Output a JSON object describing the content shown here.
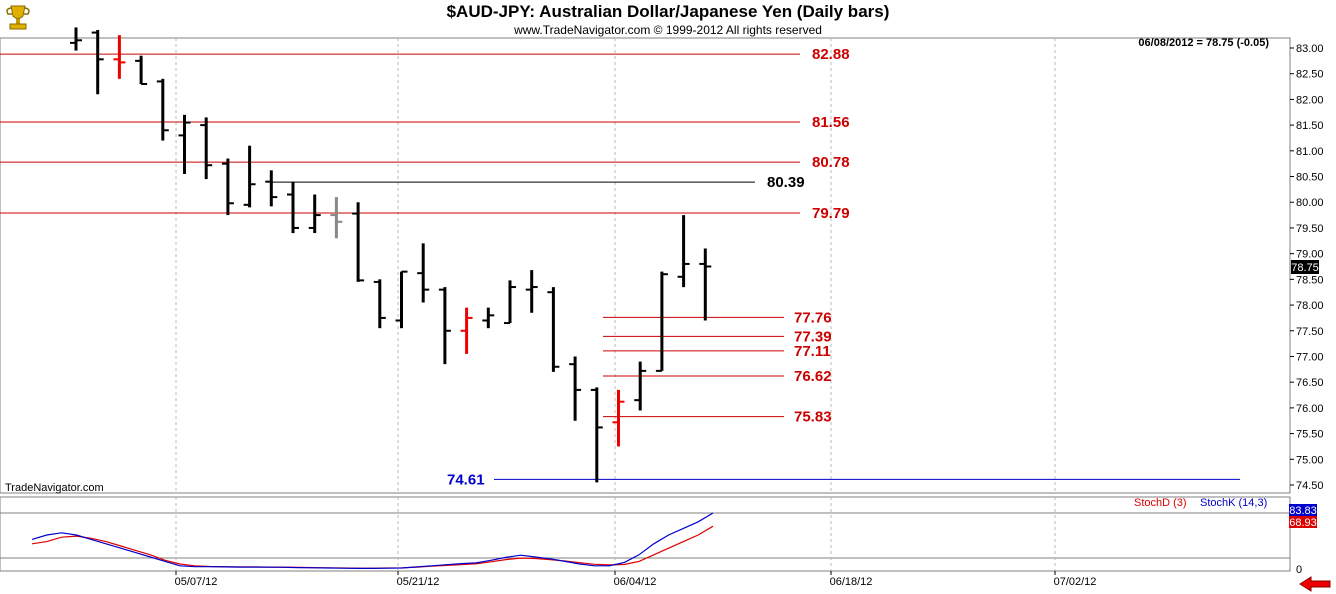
{
  "header": {
    "title": "$AUD-JPY:  Australian Dollar/Japanese Yen  (Daily bars)",
    "copyright": "www.TradeNavigator.com © 1999-2012 All rights reserved",
    "quote": "06/08/2012 = 78.75 (-0.05)",
    "watermark": "TradeNavigator.com"
  },
  "chart_data": {
    "type": "ohlc",
    "y_ticks": [
      "83.00",
      "82.50",
      "82.00",
      "81.50",
      "81.00",
      "80.50",
      "80.00",
      "79.50",
      "79.00",
      "78.50",
      "78.00",
      "77.50",
      "77.00",
      "76.50",
      "76.00",
      "75.50",
      "75.00",
      "74.50"
    ],
    "ylim": [
      74.5,
      83.0
    ],
    "x_labels": [
      "05/07/12",
      "05/21/12",
      "06/04/12",
      "06/18/12",
      "07/02/12"
    ],
    "last_price": "78.75",
    "bars": [
      {
        "o": 83.1,
        "h": 83.4,
        "l": 82.95,
        "c": 83.15,
        "color": "black"
      },
      {
        "o": 83.3,
        "h": 83.35,
        "l": 82.1,
        "c": 82.78,
        "color": "black"
      },
      {
        "o": 82.78,
        "h": 83.25,
        "l": 82.4,
        "c": 82.72,
        "color": "red"
      },
      {
        "o": 82.75,
        "h": 82.85,
        "l": 82.3,
        "c": 82.3,
        "color": "black"
      },
      {
        "o": 82.35,
        "h": 82.4,
        "l": 81.2,
        "c": 81.4,
        "color": "black"
      },
      {
        "o": 81.3,
        "h": 81.7,
        "l": 80.55,
        "c": 81.55,
        "color": "black"
      },
      {
        "o": 81.5,
        "h": 81.65,
        "l": 80.45,
        "c": 80.72,
        "color": "black"
      },
      {
        "o": 80.75,
        "h": 80.85,
        "l": 79.75,
        "c": 79.98,
        "color": "black"
      },
      {
        "o": 79.95,
        "h": 81.1,
        "l": 79.9,
        "c": 80.35,
        "color": "black"
      },
      {
        "o": 80.4,
        "h": 80.62,
        "l": 79.92,
        "c": 80.1,
        "color": "black"
      },
      {
        "o": 80.15,
        "h": 80.4,
        "l": 79.4,
        "c": 79.5,
        "color": "black"
      },
      {
        "o": 79.5,
        "h": 80.15,
        "l": 79.4,
        "c": 79.75,
        "color": "black"
      },
      {
        "o": 79.75,
        "h": 80.1,
        "l": 79.3,
        "c": 79.62,
        "color": "gray"
      },
      {
        "o": 79.78,
        "h": 80.0,
        "l": 78.45,
        "c": 78.48,
        "color": "black"
      },
      {
        "o": 78.45,
        "h": 78.5,
        "l": 77.55,
        "c": 77.75,
        "color": "black"
      },
      {
        "o": 77.7,
        "h": 78.65,
        "l": 77.55,
        "c": 78.65,
        "color": "black"
      },
      {
        "o": 78.62,
        "h": 79.2,
        "l": 78.05,
        "c": 78.3,
        "color": "black"
      },
      {
        "o": 78.3,
        "h": 78.35,
        "l": 76.85,
        "c": 77.5,
        "color": "black"
      },
      {
        "o": 77.5,
        "h": 77.95,
        "l": 77.05,
        "c": 77.75,
        "color": "red"
      },
      {
        "o": 77.7,
        "h": 77.95,
        "l": 77.55,
        "c": 77.8,
        "color": "black"
      },
      {
        "o": 77.65,
        "h": 78.48,
        "l": 77.65,
        "c": 78.35,
        "color": "black"
      },
      {
        "o": 78.3,
        "h": 78.68,
        "l": 77.85,
        "c": 78.35,
        "color": "black"
      },
      {
        "o": 78.25,
        "h": 78.35,
        "l": 76.7,
        "c": 76.8,
        "color": "black"
      },
      {
        "o": 76.85,
        "h": 77.0,
        "l": 75.75,
        "c": 76.35,
        "color": "black"
      },
      {
        "o": 76.35,
        "h": 76.4,
        "l": 74.55,
        "c": 75.62,
        "color": "black"
      },
      {
        "o": 75.72,
        "h": 76.35,
        "l": 75.25,
        "c": 76.12,
        "color": "red"
      },
      {
        "o": 76.15,
        "h": 76.9,
        "l": 75.95,
        "c": 76.72,
        "color": "black"
      },
      {
        "o": 76.72,
        "h": 78.65,
        "l": 76.72,
        "c": 78.6,
        "color": "black"
      },
      {
        "o": 78.55,
        "h": 79.75,
        "l": 78.35,
        "c": 78.8,
        "color": "black"
      },
      {
        "o": 78.8,
        "h": 79.1,
        "l": 77.7,
        "c": 78.75,
        "color": "black"
      }
    ],
    "levels": [
      {
        "value": 82.88,
        "label": "82.88",
        "color": "#cc0000",
        "kind": "full"
      },
      {
        "value": 81.56,
        "label": "81.56",
        "color": "#cc0000",
        "kind": "full"
      },
      {
        "value": 80.78,
        "label": "80.78",
        "color": "#cc0000",
        "kind": "full"
      },
      {
        "value": 80.39,
        "label": "80.39",
        "color": "#000000",
        "kind": "partial"
      },
      {
        "value": 79.79,
        "label": "79.79",
        "color": "#cc0000",
        "kind": "full"
      },
      {
        "value": 77.76,
        "label": "77.76",
        "color": "#cc0000",
        "kind": "short"
      },
      {
        "value": 77.39,
        "label": "77.39",
        "color": "#cc0000",
        "kind": "short"
      },
      {
        "value": 77.11,
        "label": "77.11",
        "color": "#cc0000",
        "kind": "short"
      },
      {
        "value": 76.62,
        "label": "76.62",
        "color": "#cc0000",
        "kind": "short"
      },
      {
        "value": 75.83,
        "label": "75.83",
        "color": "#cc0000",
        "kind": "short"
      },
      {
        "value": 74.61,
        "label": "74.61",
        "color": "#0000cc",
        "kind": "support"
      }
    ],
    "stoch": {
      "d_label": "StochD (3)",
      "k_label": "StochK (14,3)",
      "d_value": "68.93",
      "k_value": "83.83",
      "axis_zero": "0",
      "d_color": "#dd0000",
      "k_color": "#0000cc",
      "k": [
        13,
        15,
        16,
        15,
        13,
        11,
        9,
        7,
        5,
        3,
        1,
        0.6,
        0.6,
        0.5,
        0.4,
        0.4,
        0.4,
        0.3,
        0.2,
        0.1,
        0,
        -0.1,
        -0.2,
        -0.2,
        -0.1,
        0,
        0.5,
        1,
        1.5,
        2,
        2.3,
        3.5,
        4.8,
        5.8,
        5,
        4.2,
        3,
        1.8,
        1,
        1,
        2.5,
        6,
        11,
        15,
        18,
        21,
        25
      ],
      "d": [
        11,
        12,
        14,
        14.5,
        13.5,
        12,
        10,
        8,
        6,
        3.5,
        1.8,
        1,
        0.7,
        0.6,
        0.5,
        0.5,
        0.4,
        0.4,
        0.3,
        0.2,
        0.1,
        0,
        -0.1,
        -0.1,
        0,
        0.1,
        0.4,
        0.8,
        1.2,
        1.5,
        1.9,
        2.8,
        3.8,
        4.5,
        4.3,
        3.8,
        3.2,
        2.4,
        1.7,
        1.4,
        1.6,
        3,
        6,
        9,
        12,
        15,
        19
      ]
    }
  },
  "colors": {
    "frame": "#808080",
    "grid": "#b0b0b0",
    "bar_black": "#000000",
    "bar_red": "#ee0000",
    "bar_gray": "#888888"
  },
  "icons": {
    "logo": "gold-trophy-icon",
    "nav": "red-left-arrow-icon"
  }
}
